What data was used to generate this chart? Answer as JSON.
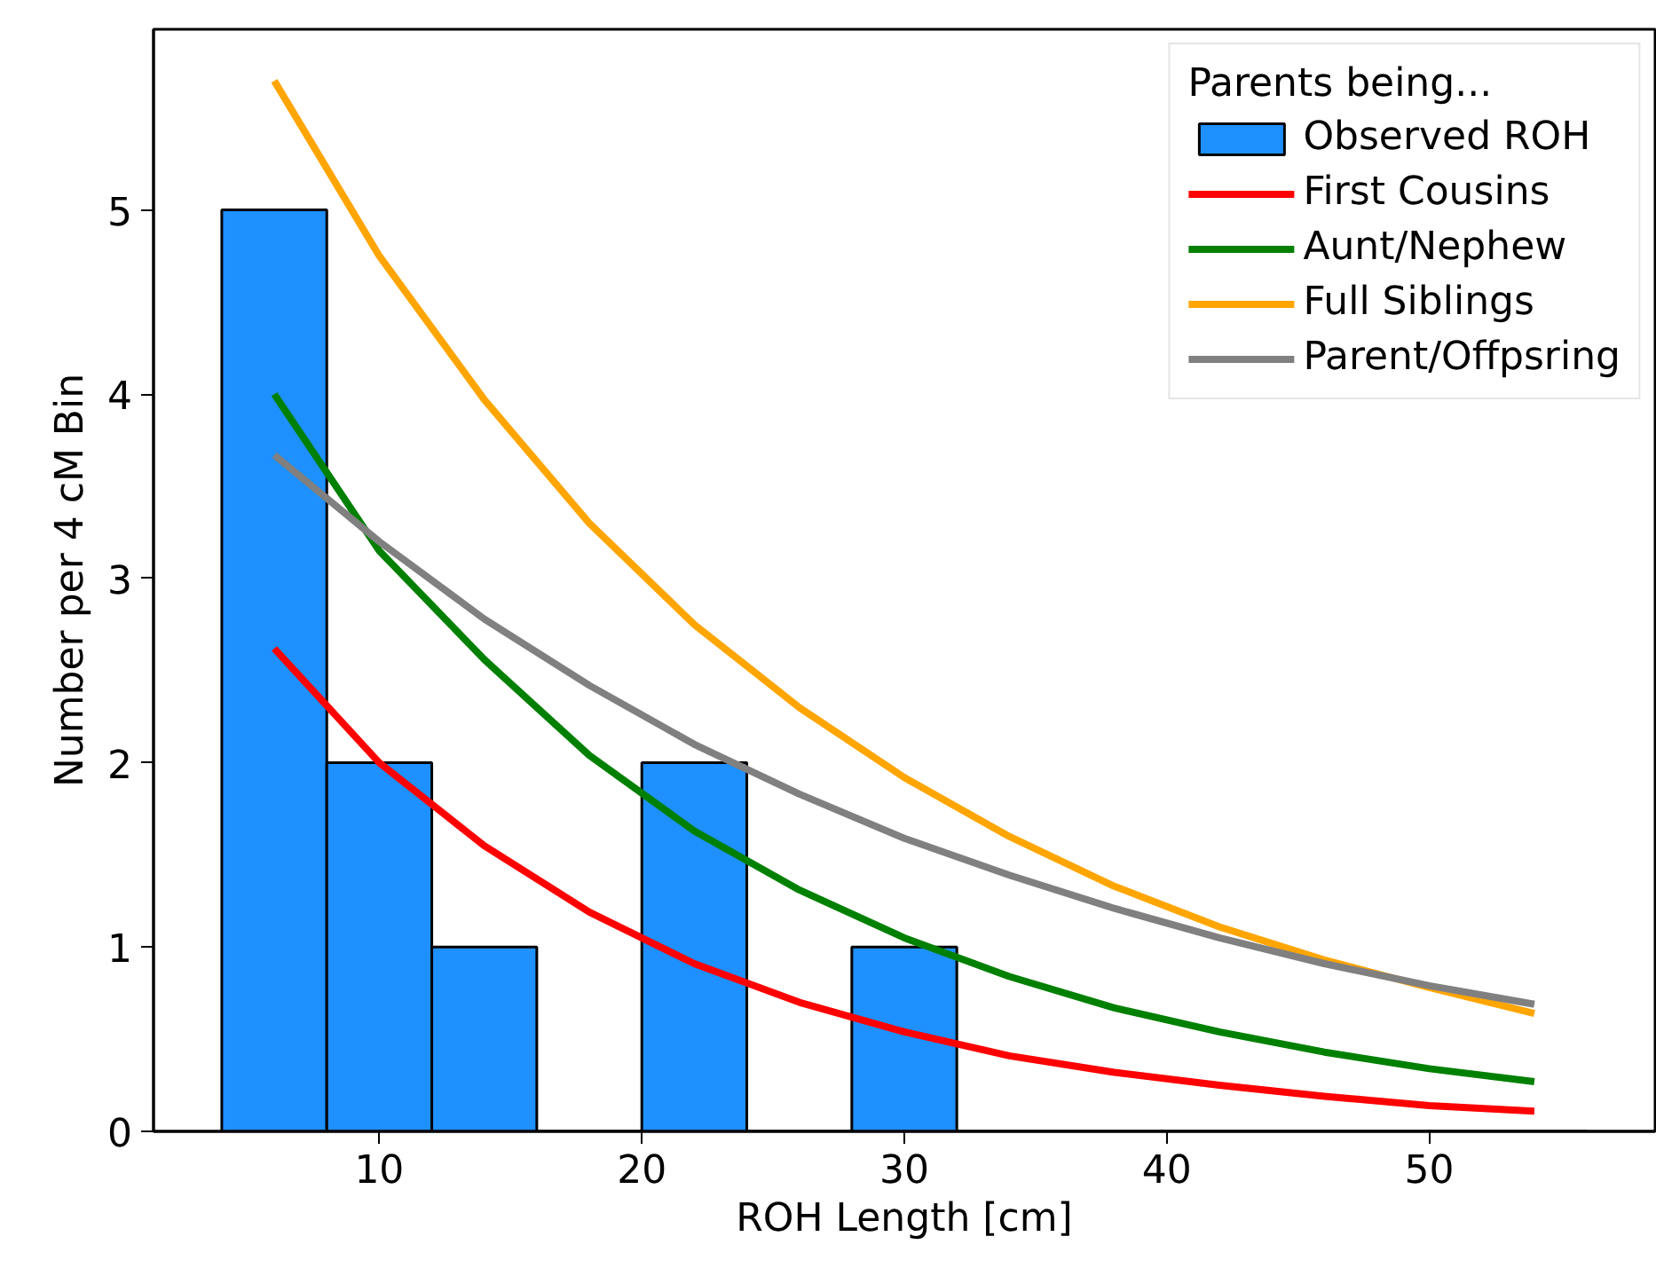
{
  "chart_data": {
    "type": "histogram",
    "xlabel": "ROH Length [cm]",
    "ylabel": "Number per 4 cM Bin",
    "legend_title": "Parents being...",
    "xlim": [
      1.4,
      58.6
    ],
    "ylim": [
      0,
      5.98
    ],
    "xticks": [
      10,
      20,
      30,
      40,
      50
    ],
    "yticks": [
      0,
      1,
      2,
      3,
      4,
      5
    ],
    "grid": false,
    "legend": "top right",
    "series": [
      {
        "name": "Observed ROH",
        "color": "#1e90ff",
        "bins": [
          4,
          8,
          12,
          16,
          20,
          24,
          28,
          32,
          36,
          40,
          44,
          48,
          52,
          56
        ],
        "values": [
          5,
          2,
          1,
          0,
          2,
          0,
          1,
          0,
          0,
          0,
          0,
          0,
          0
        ]
      },
      {
        "name": "First Cousins",
        "type": "line",
        "color": "#ff0000",
        "x": [
          6,
          10,
          14,
          18,
          22,
          26,
          30,
          34,
          38,
          42,
          46,
          50,
          54
        ],
        "values": [
          2.62,
          2.0,
          1.55,
          1.19,
          0.91,
          0.7,
          0.54,
          0.41,
          0.32,
          0.25,
          0.19,
          0.14,
          0.11
        ]
      },
      {
        "name": "Aunt/Nephew",
        "type": "line",
        "color": "#008000",
        "x": [
          6,
          10,
          14,
          18,
          22,
          26,
          30,
          34,
          38,
          42,
          46,
          50,
          54
        ],
        "values": [
          4.0,
          3.15,
          2.56,
          2.04,
          1.63,
          1.31,
          1.05,
          0.84,
          0.67,
          0.54,
          0.43,
          0.34,
          0.27
        ]
      },
      {
        "name": "Full Siblings",
        "type": "line",
        "color": "#ffa500",
        "x": [
          6,
          10,
          14,
          18,
          22,
          26,
          30,
          34,
          38,
          42,
          46,
          50,
          54
        ],
        "values": [
          5.7,
          4.75,
          3.97,
          3.3,
          2.75,
          2.3,
          1.92,
          1.6,
          1.33,
          1.11,
          0.93,
          0.78,
          0.64
        ]
      },
      {
        "name": "Parent/Offpsring",
        "type": "line",
        "color": "#808080",
        "x": [
          6,
          10,
          14,
          18,
          22,
          26,
          30,
          34,
          38,
          42,
          46,
          50,
          54
        ],
        "values": [
          3.67,
          3.2,
          2.78,
          2.42,
          2.1,
          1.83,
          1.59,
          1.39,
          1.21,
          1.05,
          0.91,
          0.79,
          0.69
        ]
      }
    ]
  }
}
